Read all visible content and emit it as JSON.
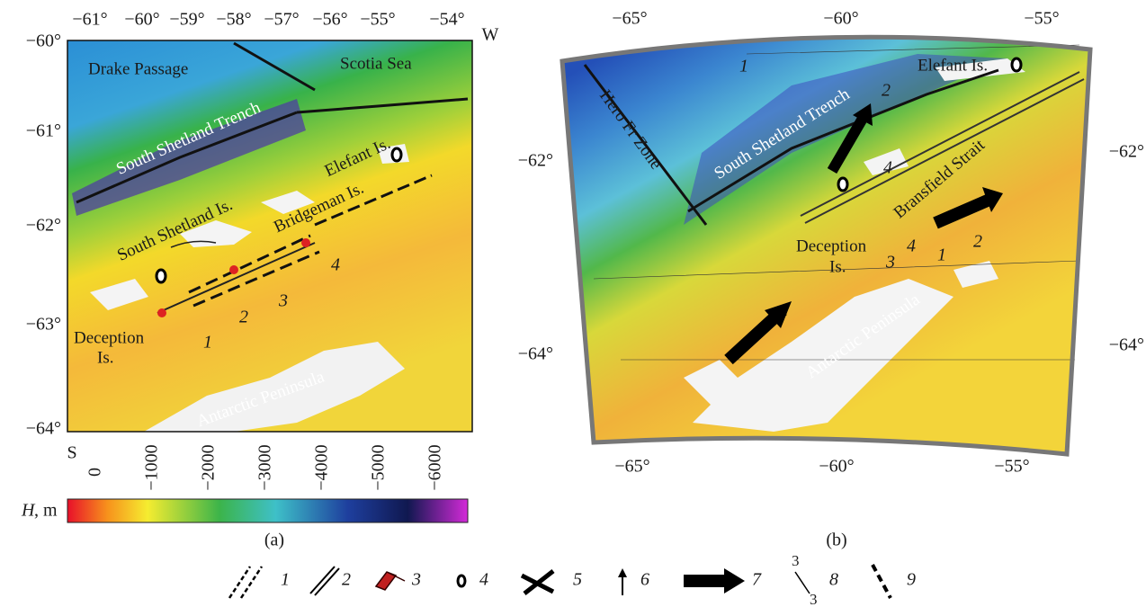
{
  "panel_a": {
    "caption": "(a)",
    "lon_labels": [
      "−61°",
      "−60°",
      "−59°",
      "−58°",
      "−57°",
      "−56°",
      "−55°",
      "−54°"
    ],
    "lat_labels": [
      "−60°",
      "−61°",
      "−62°",
      "−63°",
      "−64°"
    ],
    "corner_top_right": "W",
    "corner_bottom_left": "S",
    "places": [
      "Drake Passage",
      "Scotia Sea",
      "South Shetland Trench",
      "Elefant Is.",
      "Bridgeman Is.",
      "South Shetland Is.",
      "Deception",
      "Is.",
      "Antarctic Peninsula"
    ],
    "profile_numbers": [
      "1",
      "2",
      "3",
      "4"
    ]
  },
  "panel_b": {
    "caption": "(b)",
    "lon_labels_top": [
      "−65°",
      "−60°",
      "−55°"
    ],
    "lon_labels_bottom": [
      "−65°",
      "−60°",
      "−55°"
    ],
    "lat_labels_left": [
      "−62°",
      "−64°"
    ],
    "lat_labels_right": [
      "−62°",
      "−64°"
    ],
    "places": [
      "Hero Fr Zone",
      "South Shetland Trench",
      "Elefant Is.",
      "Bransfield Strait",
      "Deception",
      "Is.",
      "Antarctic Peninsula"
    ],
    "profile_numbers": [
      "1",
      "2",
      "4",
      "3",
      "4",
      "1",
      "2"
    ]
  },
  "colorbar": {
    "symbol": "H",
    "unit": ", m",
    "ticks": [
      "0",
      "−1000",
      "−2000",
      "−3000",
      "−4000",
      "−5000",
      "−6000"
    ]
  },
  "legend": {
    "items": [
      "1",
      "2",
      "3",
      "4",
      "5",
      "6",
      "7",
      "8",
      "9"
    ],
    "icon8_labels": [
      "3",
      "3"
    ]
  }
}
